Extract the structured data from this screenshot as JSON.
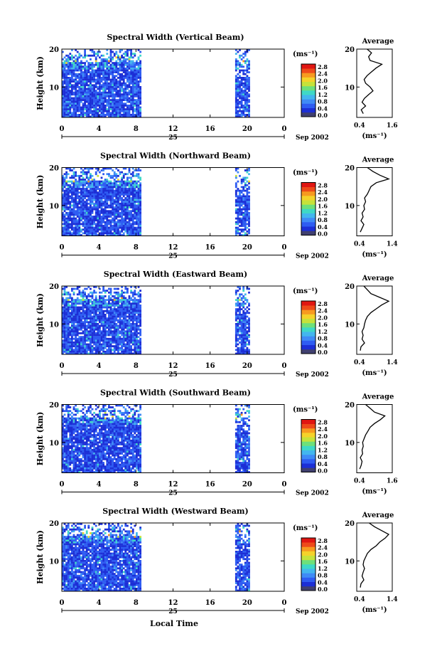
{
  "figure": {
    "xlabel_bottom": "Local Time",
    "date_label": "Sep 2002",
    "day_label": "25",
    "colorbar_unit": "(ms⁻¹)",
    "colorbar_ticks": [
      "0.0",
      "0.4",
      "0.8",
      "1.2",
      "1.6",
      "2.0",
      "2.4",
      "2.8"
    ],
    "colorbar_colors": [
      "#404070",
      "#1c2fd6",
      "#2e5cf2",
      "#3f8bf6",
      "#43b6ee",
      "#3fd8c6",
      "#6ee07a",
      "#c6e23a",
      "#f5d22a",
      "#f79a20",
      "#ee4a1a",
      "#e01612"
    ],
    "height_label": "Height (km)",
    "avg_title": "Average",
    "avg_unit": "(ms⁻¹)",
    "colors": {
      "background": "#ffffff",
      "axes": "#000000",
      "dominant_field": "#2e4ff0"
    }
  },
  "chart_data": [
    {
      "type": "heatmap",
      "title": "Spectral Width (Vertical Beam)",
      "ylabel": "Height (km)",
      "xlim": [
        0,
        24
      ],
      "ylim": [
        2,
        20
      ],
      "xticks": [
        "0",
        "4",
        "8",
        "12",
        "16",
        "20",
        "0"
      ],
      "yticks": [
        "20",
        "10"
      ],
      "data_gaps_hours": [
        [
          8.5,
          18.7
        ]
      ],
      "avg_profile": {
        "xlim": [
          0.4,
          1.6
        ],
        "xticks": [
          "0.4",
          "1.6"
        ],
        "yticks": [
          "20",
          "10"
        ],
        "height": [
          3,
          4,
          5,
          6,
          7,
          8,
          9,
          10,
          11,
          12,
          13,
          14,
          15,
          16,
          17,
          18,
          19,
          20
        ],
        "value": [
          0.62,
          0.55,
          0.7,
          0.58,
          0.66,
          0.8,
          0.95,
          0.85,
          0.7,
          0.65,
          0.75,
          0.9,
          1.05,
          1.25,
          0.85,
          0.8,
          0.9,
          0.75
        ]
      }
    },
    {
      "type": "heatmap",
      "title": "Spectral Width (Northward Beam)",
      "ylabel": "Height (km)",
      "xlim": [
        0,
        24
      ],
      "ylim": [
        2,
        20
      ],
      "xticks": [
        "0",
        "4",
        "8",
        "12",
        "16",
        "20",
        "0"
      ],
      "yticks": [
        "20",
        "10"
      ],
      "data_gaps_hours": [
        [
          8.5,
          18.7
        ]
      ],
      "avg_profile": {
        "xlim": [
          0.4,
          1.4
        ],
        "xticks": [
          "0.4",
          "1.4"
        ],
        "yticks": [
          "20",
          "10"
        ],
        "height": [
          3,
          4,
          5,
          6,
          7,
          8,
          9,
          10,
          11,
          12,
          13,
          14,
          15,
          16,
          17,
          18,
          19,
          20
        ],
        "value": [
          0.5,
          0.55,
          0.6,
          0.52,
          0.58,
          0.55,
          0.62,
          0.6,
          0.65,
          0.62,
          0.7,
          0.75,
          0.8,
          0.95,
          1.3,
          1.05,
          0.85,
          0.7
        ]
      }
    },
    {
      "type": "heatmap",
      "title": "Spectral Width (Eastward Beam)",
      "ylabel": "Height (km)",
      "xlim": [
        0,
        24
      ],
      "ylim": [
        2,
        20
      ],
      "xticks": [
        "0",
        "4",
        "8",
        "12",
        "16",
        "20",
        "0"
      ],
      "yticks": [
        "20",
        "10"
      ],
      "data_gaps_hours": [
        [
          8.5,
          18.7
        ]
      ],
      "avg_profile": {
        "xlim": [
          0.4,
          1.4
        ],
        "xticks": [
          "0.4",
          "1.4"
        ],
        "yticks": [
          "20",
          "10"
        ],
        "height": [
          3,
          4,
          5,
          6,
          7,
          8,
          9,
          10,
          11,
          12,
          13,
          14,
          15,
          16,
          17,
          18,
          19,
          20
        ],
        "value": [
          0.5,
          0.52,
          0.62,
          0.55,
          0.58,
          0.55,
          0.6,
          0.62,
          0.65,
          0.7,
          0.8,
          0.95,
          1.1,
          1.3,
          1.05,
          0.8,
          0.7,
          0.6
        ]
      }
    },
    {
      "type": "heatmap",
      "title": "Spectral Width (Southward Beam)",
      "ylabel": "Height (km)",
      "xlim": [
        0,
        24
      ],
      "ylim": [
        2,
        20
      ],
      "xticks": [
        "0",
        "4",
        "8",
        "12",
        "16",
        "20",
        "0"
      ],
      "yticks": [
        "20",
        "10"
      ],
      "data_gaps_hours": [
        [
          8.5,
          18.7
        ]
      ],
      "avg_profile": {
        "xlim": [
          0.4,
          1.6
        ],
        "xticks": [
          "0.4",
          "1.6"
        ],
        "yticks": [
          "20",
          "10"
        ],
        "height": [
          3,
          4,
          5,
          6,
          7,
          8,
          9,
          10,
          11,
          12,
          13,
          14,
          15,
          16,
          17,
          18,
          19,
          20
        ],
        "value": [
          0.5,
          0.55,
          0.58,
          0.52,
          0.6,
          0.58,
          0.62,
          0.6,
          0.65,
          0.7,
          0.78,
          0.85,
          1.0,
          1.2,
          1.35,
          1.0,
          0.85,
          0.7
        ]
      }
    },
    {
      "type": "heatmap",
      "title": "Spectral Width (Westward Beam)",
      "ylabel": "Height (km)",
      "xlim": [
        0,
        24
      ],
      "ylim": [
        2,
        20
      ],
      "xticks": [
        "0",
        "4",
        "8",
        "12",
        "16",
        "20",
        "0"
      ],
      "yticks": [
        "20",
        "10"
      ],
      "data_gaps_hours": [
        [
          8.5,
          18.7
        ]
      ],
      "avg_profile": {
        "xlim": [
          0.4,
          1.4
        ],
        "xticks": [
          "0.4",
          "1.4"
        ],
        "yticks": [
          "20",
          "10"
        ],
        "height": [
          3,
          4,
          5,
          6,
          7,
          8,
          9,
          10,
          11,
          12,
          13,
          14,
          15,
          16,
          17,
          18,
          19,
          20
        ],
        "value": [
          0.5,
          0.52,
          0.6,
          0.55,
          0.58,
          0.62,
          0.58,
          0.6,
          0.65,
          0.7,
          0.8,
          0.95,
          1.05,
          1.2,
          1.3,
          1.1,
          0.9,
          0.75
        ]
      }
    }
  ]
}
